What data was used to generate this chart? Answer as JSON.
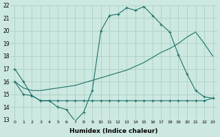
{
  "xlabel": "Humidex (Indice chaleur)",
  "bg_color": "#cce8e0",
  "grid_color": "#aacfc8",
  "line_color": "#1a7068",
  "xlim": [
    -0.5,
    23.5
  ],
  "ylim": [
    13,
    22
  ],
  "xticks": [
    0,
    1,
    2,
    3,
    4,
    5,
    6,
    7,
    8,
    9,
    10,
    11,
    12,
    13,
    14,
    15,
    16,
    17,
    18,
    19,
    20,
    21,
    22,
    23
  ],
  "yticks": [
    13,
    14,
    15,
    16,
    17,
    18,
    19,
    20,
    21,
    22
  ],
  "line1_x": [
    0,
    1,
    2,
    3,
    4,
    5,
    6,
    7,
    8,
    9,
    10,
    11,
    12,
    13,
    14,
    15,
    16,
    17,
    18,
    19,
    20,
    21,
    22,
    23
  ],
  "line1_y": [
    17.0,
    16.0,
    14.9,
    14.5,
    14.5,
    14.0,
    13.8,
    12.9,
    13.6,
    15.3,
    20.0,
    21.2,
    21.3,
    21.8,
    21.6,
    21.9,
    21.2,
    20.5,
    19.9,
    18.1,
    16.6,
    15.3,
    14.8,
    14.7
  ],
  "line2_x": [
    0,
    1,
    2,
    3,
    4,
    5,
    6,
    7,
    8,
    9,
    10,
    11,
    12,
    13,
    14,
    15,
    16,
    17,
    18,
    19,
    20,
    21,
    22,
    23
  ],
  "line2_y": [
    16.0,
    15.0,
    14.9,
    14.5,
    14.5,
    14.5,
    14.5,
    14.5,
    14.5,
    14.5,
    14.5,
    14.5,
    14.5,
    14.5,
    14.5,
    14.5,
    14.5,
    14.5,
    14.5,
    14.5,
    14.5,
    14.5,
    14.5,
    14.7
  ],
  "line3_x": [
    0,
    1,
    2,
    3,
    4,
    5,
    6,
    7,
    8,
    9,
    10,
    11,
    12,
    13,
    14,
    15,
    16,
    17,
    18,
    19,
    20,
    21,
    22,
    23
  ],
  "line3_y": [
    16.0,
    15.5,
    15.3,
    15.3,
    15.4,
    15.5,
    15.6,
    15.7,
    15.9,
    16.1,
    16.3,
    16.5,
    16.7,
    16.9,
    17.2,
    17.5,
    17.9,
    18.3,
    18.6,
    19.0,
    19.5,
    19.9,
    19.0,
    18.0
  ]
}
